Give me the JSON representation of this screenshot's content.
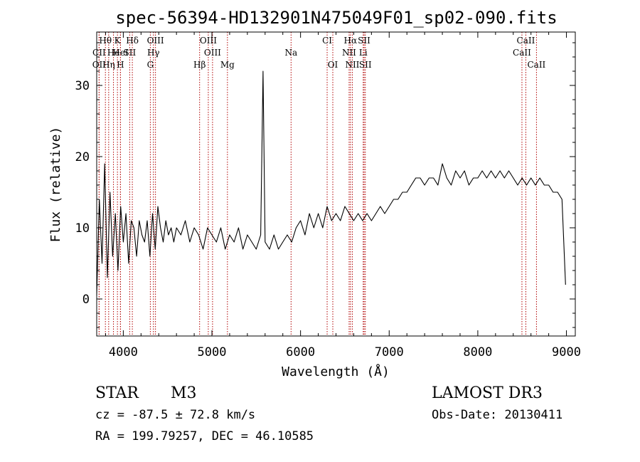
{
  "chart_data": {
    "type": "line",
    "title": "spec-56394-HD132901N475049F01_sp02-090.fits",
    "xlabel": "Wavelength (Å)",
    "ylabel": "Flux (relative)",
    "xlim": [
      3700,
      9100
    ],
    "ylim": [
      -5.2,
      37.5
    ],
    "x_ticks": [
      4000,
      5000,
      6000,
      7000,
      8000,
      9000
    ],
    "y_ticks": [
      0,
      10,
      20,
      30
    ],
    "x_tick_labels": [
      "4000",
      "5000",
      "6000",
      "7000",
      "8000",
      "9000"
    ],
    "y_tick_labels": [
      "0",
      "10",
      "20",
      "30"
    ],
    "series": [
      {
        "name": "flux",
        "x": [
          3700,
          3730,
          3760,
          3790,
          3820,
          3850,
          3880,
          3910,
          3940,
          3970,
          4000,
          4030,
          4060,
          4090,
          4120,
          4150,
          4180,
          4210,
          4240,
          4270,
          4300,
          4330,
          4360,
          4390,
          4420,
          4450,
          4480,
          4510,
          4540,
          4570,
          4600,
          4650,
          4700,
          4750,
          4800,
          4850,
          4900,
          4950,
          5000,
          5050,
          5100,
          5150,
          5200,
          5250,
          5300,
          5350,
          5400,
          5450,
          5500,
          5550,
          5577,
          5600,
          5650,
          5700,
          5750,
          5800,
          5850,
          5900,
          5950,
          6000,
          6050,
          6100,
          6150,
          6200,
          6250,
          6300,
          6350,
          6400,
          6450,
          6500,
          6550,
          6600,
          6650,
          6700,
          6750,
          6800,
          6850,
          6900,
          6950,
          7000,
          7050,
          7100,
          7150,
          7200,
          7250,
          7300,
          7350,
          7400,
          7450,
          7500,
          7550,
          7600,
          7650,
          7700,
          7750,
          7800,
          7850,
          7900,
          7950,
          8000,
          8050,
          8100,
          8150,
          8200,
          8250,
          8300,
          8350,
          8400,
          8450,
          8500,
          8550,
          8600,
          8650,
          8700,
          8750,
          8800,
          8850,
          8900,
          8950,
          8990
        ],
        "values": [
          0.5,
          14,
          5,
          19,
          3,
          15,
          6,
          12,
          4,
          13,
          8,
          12,
          5,
          11,
          10,
          6,
          11,
          9,
          8,
          11,
          6,
          12,
          7,
          13,
          10,
          8,
          11,
          9,
          10,
          8,
          10,
          9,
          11,
          8,
          10,
          9,
          7,
          10,
          9,
          8,
          10,
          7,
          9,
          8,
          10,
          7,
          9,
          8,
          7,
          9,
          32,
          8,
          7,
          9,
          7,
          8,
          9,
          8,
          10,
          11,
          9,
          12,
          10,
          12,
          10,
          13,
          11,
          12,
          11,
          13,
          12,
          11,
          12,
          11,
          12,
          11,
          12,
          13,
          12,
          13,
          14,
          14,
          15,
          15,
          16,
          17,
          17,
          16,
          17,
          17,
          16,
          19,
          17,
          16,
          18,
          17,
          18,
          16,
          17,
          17,
          18,
          17,
          18,
          17,
          18,
          17,
          18,
          17,
          16,
          17,
          16,
          17,
          16,
          17,
          16,
          16,
          15,
          15,
          14,
          2
        ]
      }
    ],
    "spectral_lines": [
      {
        "label": "Hθ",
        "wavelength": 3798,
        "row": 0
      },
      {
        "label": "K",
        "wavelength": 3934,
        "row": 0
      },
      {
        "label": "Hδ",
        "wavelength": 4102,
        "row": 0
      },
      {
        "label": "OIII",
        "wavelength": 4363,
        "row": 0
      },
      {
        "label": "OIII",
        "wavelength": 4959,
        "row": 0
      },
      {
        "label": "CI",
        "wavelength": 6300,
        "row": 0
      },
      {
        "label": "Hα",
        "wavelength": 6563,
        "row": 0
      },
      {
        "label": "SII",
        "wavelength": 6717,
        "row": 0
      },
      {
        "label": "CaII",
        "wavelength": 8542,
        "row": 0
      },
      {
        "label": "CII",
        "wavelength": 3727,
        "row": 1
      },
      {
        "label": "He",
        "wavelength": 3889,
        "row": 1
      },
      {
        "label": "HeI",
        "wavelength": 3968,
        "row": 1
      },
      {
        "label": "SII",
        "wavelength": 4072,
        "row": 1
      },
      {
        "label": "Hγ",
        "wavelength": 4340,
        "row": 1
      },
      {
        "label": "OIII",
        "wavelength": 5007,
        "row": 1
      },
      {
        "label": "Na",
        "wavelength": 5893,
        "row": 1
      },
      {
        "label": "NII",
        "wavelength": 6548,
        "row": 1
      },
      {
        "label": "Li",
        "wavelength": 6707,
        "row": 1
      },
      {
        "label": "CaII",
        "wavelength": 8498,
        "row": 1
      },
      {
        "label": "OII",
        "wavelength": 3727,
        "row": 2
      },
      {
        "label": "Hη",
        "wavelength": 3835,
        "row": 2
      },
      {
        "label": "H",
        "wavelength": 3968,
        "row": 2
      },
      {
        "label": "G",
        "wavelength": 4305,
        "row": 2
      },
      {
        "label": "Hβ",
        "wavelength": 4861,
        "row": 2
      },
      {
        "label": "Mg",
        "wavelength": 5175,
        "row": 2
      },
      {
        "label": "OI",
        "wavelength": 6364,
        "row": 2
      },
      {
        "label": "NII",
        "wavelength": 6584,
        "row": 2
      },
      {
        "label": "SII",
        "wavelength": 6731,
        "row": 2
      },
      {
        "label": "CaII",
        "wavelength": 8662,
        "row": 2
      }
    ],
    "line_color": "#000000",
    "marker_color": "#b00000"
  },
  "info": {
    "object_class": "STAR",
    "subclass": "M3",
    "survey": "LAMOST DR3",
    "redshift": "cz = -87.5 ± 72.8 km/s",
    "obs_date": "Obs-Date: 20130411",
    "coords": "RA = 199.79257, DEC =  46.10585"
  }
}
